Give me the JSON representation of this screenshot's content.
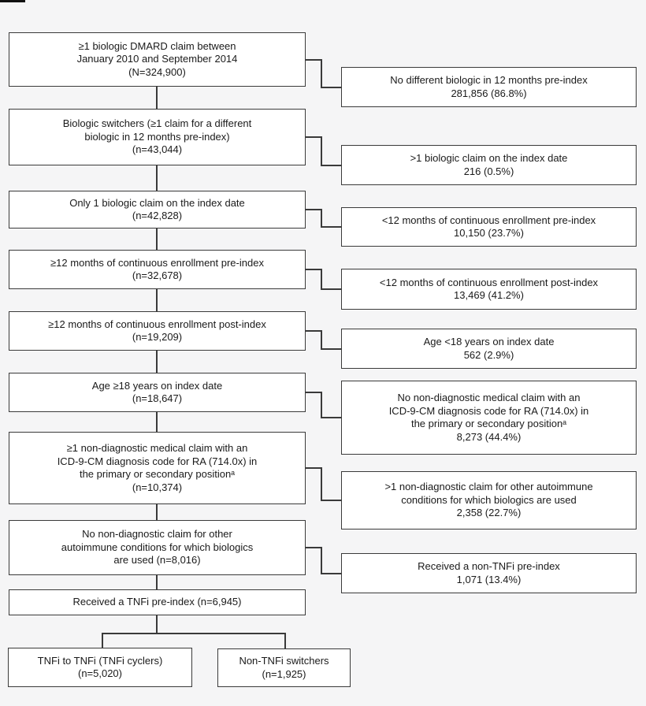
{
  "figure": {
    "type": "flowchart",
    "background": "#f5f5f6",
    "box_fill": "#ffffff",
    "border_color": "#3a3a3a",
    "text_color": "#1a1a1a"
  },
  "flowchart": {
    "left_column": [
      {
        "id": "dmard-claim",
        "text": "≥1 biologic DMARD claim between\nJanuary 2010 and September 2014\n(N=324,900)"
      },
      {
        "id": "biologic-switchers",
        "text": "Biologic switchers (≥1 claim for a different\nbiologic in 12 months pre-index)\n(n=43,044)"
      },
      {
        "id": "only-1-claim-index-date",
        "text": "Only 1 biologic claim on the index date\n(n=42,828)"
      },
      {
        "id": "enrollment-pre-index",
        "text": "≥12 months of continuous enrollment pre-index\n(n=32,678)"
      },
      {
        "id": "enrollment-post-index",
        "text": "≥12 months of continuous enrollment post-index\n(n=19,209)"
      },
      {
        "id": "age-ge-18",
        "text": "Age ≥18 years on index date\n(n=18,647)"
      },
      {
        "id": "ra-diagnosis-claim",
        "text": "≥1 non-diagnostic medical claim with an\nICD-9-CM diagnosis code for RA (714.0x) in\nthe primary or secondary positionᵃ\n(n=10,374)"
      },
      {
        "id": "no-other-autoimmune",
        "text": "No non-diagnostic claim for other\nautoimmune conditions for which biologics\nare used (n=8,016)"
      },
      {
        "id": "received-tnfi-pre-index",
        "text": "Received a TNFi pre-index (n=6,945)"
      }
    ],
    "right_column": [
      {
        "id": "excl-no-different-biologic",
        "text": "No different biologic in 12 months pre-index\n281,856 (86.8%)"
      },
      {
        "id": "excl-gt1-claim-index-date",
        "text": ">1 biologic claim on the index date\n216 (0.5%)"
      },
      {
        "id": "excl-enrollment-pre-index",
        "text": "<12 months of continuous enrollment pre-index\n10,150 (23.7%)"
      },
      {
        "id": "excl-enrollment-post-index",
        "text": "<12 months of continuous enrollment post-index\n13,469 (41.2%)"
      },
      {
        "id": "excl-age-lt-18",
        "text": "Age <18 years on index date\n562 (2.9%)"
      },
      {
        "id": "excl-no-ra-diagnosis",
        "text": "No non-diagnostic medical claim with an\nICD-9-CM diagnosis code for RA (714.0x) in\nthe primary or secondary positionᵃ\n8,273 (44.4%)"
      },
      {
        "id": "excl-other-autoimmune",
        "text": ">1 non-diagnostic claim for other autoimmune\nconditions for which biologics are used\n2,358 (22.7%)"
      },
      {
        "id": "excl-non-tnfi-pre-index",
        "text": "Received a non-TNFi pre-index\n1,071 (13.4%)"
      }
    ],
    "bottom_row": [
      {
        "id": "tnfi-cyclers",
        "text": "TNFi to TNFi (TNFi cyclers)\n(n=5,020)"
      },
      {
        "id": "non-tnfi-switchers",
        "text": "Non-TNFi switchers\n(n=1,925)"
      }
    ]
  }
}
